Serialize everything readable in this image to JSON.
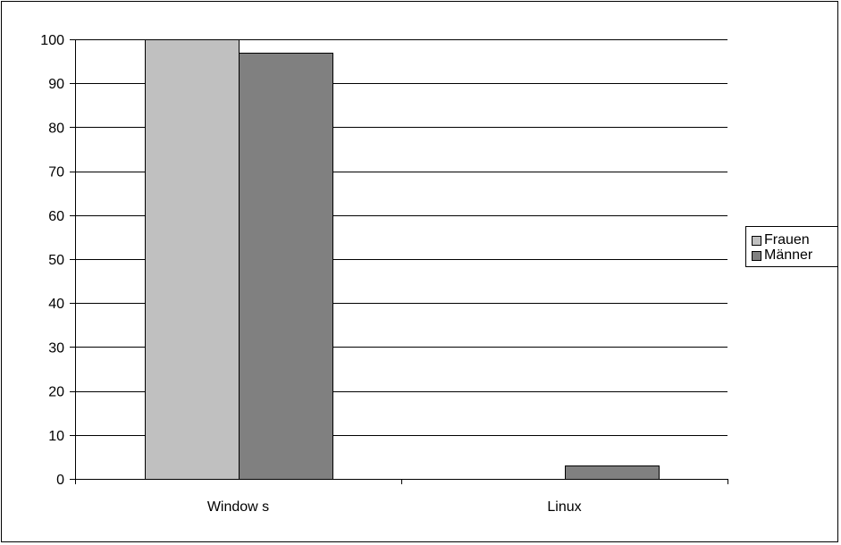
{
  "chart_data": {
    "type": "bar",
    "categories": [
      "Window s",
      "Linux"
    ],
    "series": [
      {
        "name": "Frauen",
        "values": [
          100,
          0
        ],
        "color": "#c0c0c0"
      },
      {
        "name": "Männer",
        "values": [
          97,
          3
        ],
        "color": "#808080"
      }
    ],
    "ylim": [
      0,
      100
    ],
    "yticks": [
      0,
      10,
      20,
      30,
      40,
      50,
      60,
      70,
      80,
      90,
      100
    ],
    "grid": true,
    "legend_position": "right"
  }
}
